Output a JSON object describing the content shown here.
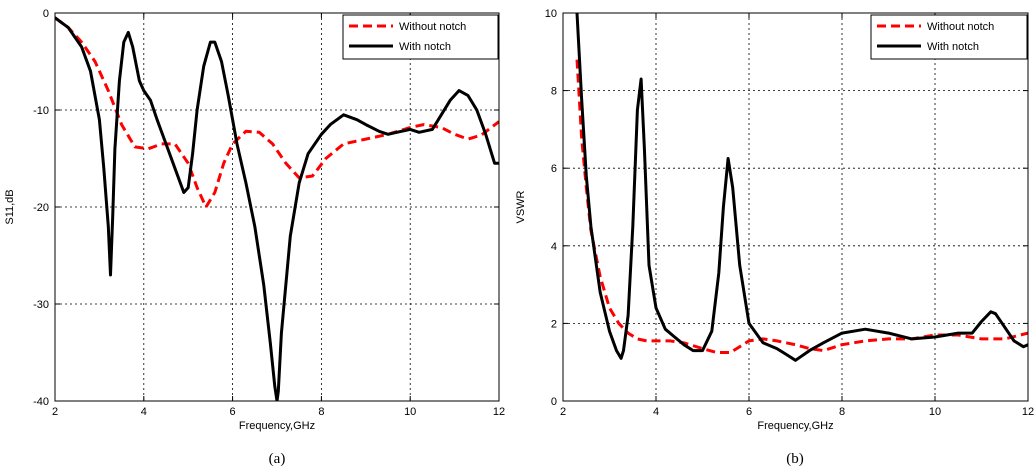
{
  "chart_data": [
    {
      "type": "line",
      "xlabel": "Frequency,GHz",
      "ylabel": "S11,dB",
      "caption": "(a)",
      "xlim": [
        2,
        12
      ],
      "ylim": [
        -40,
        0
      ],
      "xticks": [
        2,
        4,
        6,
        8,
        10,
        12
      ],
      "yticks": [
        -40,
        -30,
        -20,
        -10,
        0
      ],
      "xtick_labels": [
        "2",
        "4",
        "6",
        "8",
        "10",
        "12"
      ],
      "ytick_labels": [
        "-40",
        "-30",
        "-20",
        "-10",
        "0"
      ],
      "grid": true,
      "legend_position": "top-right",
      "series": [
        {
          "name": "Without notch",
          "color": "#ff0000",
          "style": "dashed",
          "x": [
            2.0,
            2.3,
            2.6,
            2.9,
            3.2,
            3.5,
            3.8,
            4.1,
            4.4,
            4.7,
            5.0,
            5.2,
            5.4,
            5.6,
            5.8,
            6.0,
            6.3,
            6.6,
            6.9,
            7.2,
            7.5,
            7.8,
            8.1,
            8.5,
            9.0,
            9.5,
            10.0,
            10.3,
            10.7,
            11.0,
            11.3,
            11.6,
            12.0
          ],
          "y": [
            -0.5,
            -1.5,
            -3.0,
            -5.0,
            -8.0,
            -11.5,
            -13.8,
            -14.0,
            -13.5,
            -13.5,
            -15.5,
            -18.0,
            -20.0,
            -18.5,
            -15.5,
            -13.5,
            -12.2,
            -12.3,
            -13.5,
            -15.5,
            -17.0,
            -16.8,
            -15.0,
            -13.5,
            -13.0,
            -12.5,
            -11.8,
            -11.5,
            -11.8,
            -12.5,
            -13.0,
            -12.6,
            -11.2
          ]
        },
        {
          "name": "With notch",
          "color": "#000000",
          "style": "solid",
          "x": [
            2.0,
            2.3,
            2.6,
            2.8,
            3.0,
            3.1,
            3.2,
            3.25,
            3.3,
            3.35,
            3.45,
            3.55,
            3.65,
            3.75,
            3.9,
            4.0,
            4.15,
            4.3,
            4.5,
            4.7,
            4.9,
            5.0,
            5.1,
            5.2,
            5.35,
            5.5,
            5.6,
            5.75,
            5.9,
            6.1,
            6.3,
            6.5,
            6.7,
            6.85,
            6.95,
            7.0,
            7.03,
            7.1,
            7.3,
            7.5,
            7.7,
            8.0,
            8.2,
            8.5,
            8.8,
            9.0,
            9.3,
            9.5,
            9.7,
            10.0,
            10.2,
            10.5,
            10.7,
            10.9,
            11.1,
            11.3,
            11.5,
            11.7,
            11.9,
            12.0
          ],
          "y": [
            -0.5,
            -1.5,
            -3.5,
            -6.0,
            -11.0,
            -16.0,
            -22.0,
            -27.0,
            -21.0,
            -14.0,
            -7.0,
            -3.0,
            -2.0,
            -3.5,
            -7.0,
            -8.0,
            -9.0,
            -11.0,
            -13.5,
            -16.0,
            -18.5,
            -18.0,
            -14.5,
            -10.0,
            -5.5,
            -3.0,
            -3.0,
            -5.0,
            -8.5,
            -13.5,
            -17.5,
            -22.0,
            -28.0,
            -34.0,
            -38.5,
            -40.0,
            -39.0,
            -33.0,
            -23.0,
            -17.5,
            -14.5,
            -12.5,
            -11.5,
            -10.5,
            -11.0,
            -11.5,
            -12.2,
            -12.5,
            -12.3,
            -12.0,
            -12.3,
            -12.0,
            -10.5,
            -9.0,
            -8.0,
            -8.5,
            -10.0,
            -12.5,
            -15.5,
            -15.5
          ]
        }
      ]
    },
    {
      "type": "line",
      "xlabel": "Frequency,GHz",
      "ylabel": "VSWR",
      "caption": "(b)",
      "xlim": [
        2,
        12
      ],
      "ylim": [
        0,
        10
      ],
      "xticks": [
        2,
        4,
        6,
        8,
        10,
        12
      ],
      "yticks": [
        0,
        2,
        4,
        6,
        8,
        10
      ],
      "xtick_labels": [
        "2",
        "4",
        "6",
        "8",
        "10",
        "12"
      ],
      "ytick_labels": [
        "0",
        "2",
        "4",
        "6",
        "8",
        "10"
      ],
      "grid": true,
      "legend_position": "top-right",
      "series": [
        {
          "name": "Without notch",
          "color": "#ff0000",
          "style": "dashed",
          "x": [
            2.3,
            2.4,
            2.5,
            2.6,
            2.8,
            3.0,
            3.2,
            3.4,
            3.6,
            3.8,
            4.0,
            4.3,
            4.6,
            5.0,
            5.3,
            5.6,
            6.0,
            6.3,
            6.6,
            7.0,
            7.3,
            7.6,
            8.0,
            8.5,
            9.0,
            9.5,
            10.0,
            10.5,
            11.0,
            11.5,
            12.0
          ],
          "y": [
            8.8,
            6.8,
            5.5,
            4.4,
            3.2,
            2.4,
            2.0,
            1.75,
            1.6,
            1.55,
            1.55,
            1.55,
            1.5,
            1.35,
            1.25,
            1.25,
            1.55,
            1.6,
            1.55,
            1.45,
            1.35,
            1.3,
            1.45,
            1.55,
            1.6,
            1.6,
            1.7,
            1.7,
            1.6,
            1.6,
            1.75
          ]
        },
        {
          "name": "With notch",
          "color": "#000000",
          "style": "solid",
          "x": [
            2.3,
            2.4,
            2.5,
            2.6,
            2.8,
            3.0,
            3.15,
            3.25,
            3.3,
            3.4,
            3.5,
            3.6,
            3.68,
            3.75,
            3.85,
            4.0,
            4.2,
            4.4,
            4.6,
            4.8,
            5.0,
            5.2,
            5.35,
            5.45,
            5.55,
            5.65,
            5.8,
            6.0,
            6.3,
            6.6,
            6.8,
            7.0,
            7.3,
            7.6,
            8.0,
            8.5,
            9.0,
            9.5,
            10.0,
            10.5,
            10.8,
            11.0,
            11.2,
            11.3,
            11.5,
            11.7,
            11.9,
            12.0
          ],
          "y": [
            10.0,
            7.8,
            5.8,
            4.5,
            2.8,
            1.8,
            1.3,
            1.1,
            1.3,
            2.2,
            4.5,
            7.5,
            8.3,
            6.5,
            3.5,
            2.4,
            1.85,
            1.65,
            1.45,
            1.3,
            1.3,
            1.8,
            3.3,
            5.0,
            6.25,
            5.5,
            3.5,
            2.0,
            1.5,
            1.35,
            1.2,
            1.05,
            1.3,
            1.5,
            1.75,
            1.85,
            1.75,
            1.6,
            1.65,
            1.75,
            1.75,
            2.05,
            2.3,
            2.25,
            1.9,
            1.55,
            1.4,
            1.45
          ]
        }
      ]
    }
  ]
}
